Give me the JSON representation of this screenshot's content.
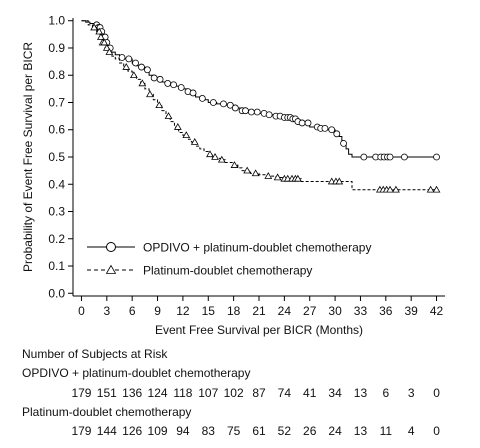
{
  "chart_data": {
    "type": "line",
    "xlabel": "Event Free Survival per BICR (Months)",
    "ylabel": "Probability of Event Free Survival per BICR",
    "xlim": [
      -1,
      43
    ],
    "ylim": [
      -0.01,
      1.01
    ],
    "xticks": [
      "0",
      "3",
      "6",
      "9",
      "12",
      "15",
      "18",
      "21",
      "24",
      "27",
      "30",
      "33",
      "36",
      "39",
      "42"
    ],
    "yticks": [
      "0.0",
      "0.1",
      "0.2",
      "0.3",
      "0.4",
      "0.5",
      "0.6",
      "0.7",
      "0.8",
      "0.9",
      "1.0"
    ],
    "grid": false,
    "legend_position": "lower-left",
    "series": [
      {
        "name": "OPDIVO + platinum-doublet chemotherapy",
        "marker": "circle",
        "line_style": "solid",
        "step_points": [
          [
            0,
            1.0
          ],
          [
            0.5,
            0.995
          ],
          [
            1,
            0.99
          ],
          [
            1.5,
            0.985
          ],
          [
            2,
            0.975
          ],
          [
            2.3,
            0.96
          ],
          [
            2.6,
            0.94
          ],
          [
            2.9,
            0.92
          ],
          [
            3.2,
            0.9
          ],
          [
            3.5,
            0.885
          ],
          [
            4,
            0.875
          ],
          [
            4.5,
            0.865
          ],
          [
            5,
            0.86
          ],
          [
            6,
            0.845
          ],
          [
            6.5,
            0.835
          ],
          [
            7,
            0.83
          ],
          [
            7.5,
            0.82
          ],
          [
            8,
            0.8
          ],
          [
            8.5,
            0.79
          ],
          [
            9,
            0.785
          ],
          [
            9.5,
            0.775
          ],
          [
            10,
            0.77
          ],
          [
            10.5,
            0.765
          ],
          [
            11,
            0.76
          ],
          [
            11.5,
            0.755
          ],
          [
            12,
            0.75
          ],
          [
            12.5,
            0.74
          ],
          [
            13,
            0.735
          ],
          [
            13.5,
            0.72
          ],
          [
            14,
            0.715
          ],
          [
            14.5,
            0.71
          ],
          [
            15,
            0.7
          ],
          [
            16,
            0.695
          ],
          [
            17,
            0.69
          ],
          [
            18,
            0.68
          ],
          [
            19,
            0.67
          ],
          [
            20,
            0.665
          ],
          [
            21,
            0.66
          ],
          [
            22,
            0.655
          ],
          [
            23,
            0.65
          ],
          [
            24,
            0.645
          ],
          [
            25,
            0.64
          ],
          [
            25.5,
            0.63
          ],
          [
            26,
            0.625
          ],
          [
            27,
            0.61
          ],
          [
            28,
            0.605
          ],
          [
            29,
            0.6
          ],
          [
            29.5,
            0.6
          ],
          [
            30,
            0.585
          ],
          [
            30.5,
            0.575
          ],
          [
            30.8,
            0.56
          ],
          [
            31,
            0.55
          ],
          [
            31.3,
            0.53
          ],
          [
            31.6,
            0.51
          ],
          [
            32,
            0.5
          ],
          [
            42,
            0.5
          ]
        ],
        "censor_x": [
          1.8,
          2.0,
          2.2,
          2.4,
          2.6,
          2.8,
          3.0,
          3.4,
          4.8,
          5.6,
          6.4,
          7.1,
          7.8,
          8.6,
          9.3,
          10.2,
          10.9,
          11.8,
          12.6,
          13.2,
          14.3,
          15.6,
          16.8,
          17.6,
          18.2,
          19.0,
          19.4,
          20.1,
          20.8,
          21.6,
          22.2,
          23.0,
          23.5,
          24.0,
          24.4,
          24.7,
          25.0,
          25.3,
          25.6,
          26.1,
          26.8,
          27.9,
          28.3,
          28.8,
          29.6,
          30.2,
          31.0,
          33.4,
          34.8,
          35.4,
          35.8,
          36.2,
          36.5,
          38.2,
          42.0
        ]
      },
      {
        "name": "Platinum-doublet chemotherapy",
        "marker": "triangle",
        "line_style": "dashed",
        "step_points": [
          [
            0,
            1.0
          ],
          [
            0.8,
            0.985
          ],
          [
            1.3,
            0.975
          ],
          [
            1.8,
            0.96
          ],
          [
            2.2,
            0.94
          ],
          [
            2.5,
            0.92
          ],
          [
            2.8,
            0.9
          ],
          [
            3.2,
            0.885
          ],
          [
            3.6,
            0.87
          ],
          [
            4,
            0.86
          ],
          [
            4.5,
            0.845
          ],
          [
            5,
            0.83
          ],
          [
            5.5,
            0.815
          ],
          [
            6,
            0.8
          ],
          [
            6.5,
            0.785
          ],
          [
            7,
            0.77
          ],
          [
            7.5,
            0.75
          ],
          [
            8,
            0.73
          ],
          [
            8.5,
            0.71
          ],
          [
            9,
            0.69
          ],
          [
            9.5,
            0.67
          ],
          [
            10,
            0.65
          ],
          [
            10.5,
            0.63
          ],
          [
            11,
            0.61
          ],
          [
            11.5,
            0.59
          ],
          [
            12,
            0.58
          ],
          [
            12.5,
            0.565
          ],
          [
            13,
            0.555
          ],
          [
            13.5,
            0.54
          ],
          [
            14,
            0.53
          ],
          [
            14.5,
            0.52
          ],
          [
            15,
            0.51
          ],
          [
            15.5,
            0.5
          ],
          [
            16,
            0.495
          ],
          [
            16.5,
            0.49
          ],
          [
            17,
            0.48
          ],
          [
            18,
            0.47
          ],
          [
            18.5,
            0.46
          ],
          [
            19,
            0.45
          ],
          [
            20,
            0.44
          ],
          [
            21,
            0.435
          ],
          [
            22,
            0.43
          ],
          [
            23,
            0.425
          ],
          [
            24,
            0.42
          ],
          [
            25,
            0.42
          ],
          [
            26,
            0.41
          ],
          [
            27,
            0.41
          ],
          [
            28,
            0.41
          ],
          [
            29,
            0.41
          ],
          [
            30,
            0.41
          ],
          [
            31,
            0.41
          ],
          [
            32,
            0.38
          ],
          [
            42,
            0.38
          ]
        ],
        "censor_x": [
          1.5,
          2.1,
          2.3,
          2.5,
          2.7,
          3.0,
          3.3,
          5.3,
          6.2,
          7.2,
          8.1,
          9.2,
          10.3,
          11.4,
          12.4,
          13.4,
          15.2,
          15.8,
          16.6,
          18.1,
          19.6,
          20.6,
          22.1,
          23.2,
          24.0,
          24.4,
          24.9,
          25.3,
          25.6,
          29.6,
          30.1,
          30.5,
          35.3,
          35.7,
          36.1,
          36.5,
          37.2,
          41.3,
          42.0
        ]
      }
    ]
  },
  "risk_table": {
    "header": "Number of Subjects at Risk",
    "rows": [
      {
        "label": "OPDIVO + platinum-doublet chemotherapy",
        "values": [
          "179",
          "151",
          "136",
          "124",
          "118",
          "107",
          "102",
          "87",
          "74",
          "41",
          "34",
          "13",
          "6",
          "3",
          "0"
        ]
      },
      {
        "label": "Platinum-doublet chemotherapy",
        "values": [
          "179",
          "144",
          "126",
          "109",
          "94",
          "83",
          "75",
          "61",
          "52",
          "26",
          "24",
          "13",
          "11",
          "4",
          "0"
        ]
      }
    ]
  }
}
